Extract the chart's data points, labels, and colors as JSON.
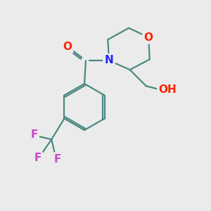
{
  "background_color": "#ebebeb",
  "bond_color": "#4a8a80",
  "bond_width": 1.6,
  "atom_colors": {
    "O": "#ff2200",
    "N": "#2222ff",
    "F": "#cc44cc",
    "C": "#000000"
  },
  "font_size_atom": 11,
  "figsize": [
    3.0,
    3.0
  ],
  "dpi": 100
}
